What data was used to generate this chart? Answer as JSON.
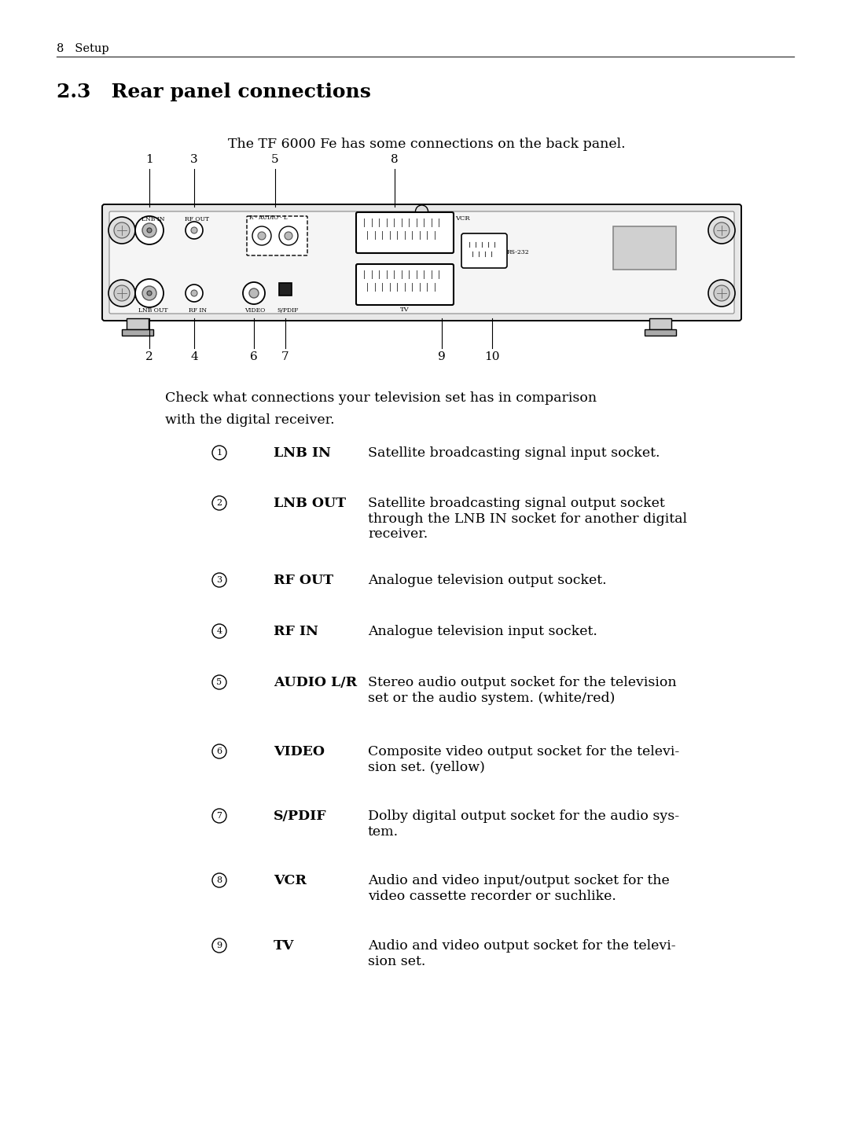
{
  "page_number": "8",
  "page_header": "Setup",
  "section_title": "2.3   Rear panel connections",
  "intro_text": "The TF 6000 Fe has some connections on the back panel.",
  "check_text": "Check what connections your television set has in comparison\nwith the digital receiver.",
  "items": [
    {
      "number": "①",
      "label": "LNB IN",
      "description": "Satellite broadcasting signal input socket."
    },
    {
      "number": "②",
      "label": "LNB OUT",
      "description": "Satellite broadcasting signal output socket\nthrough the LNB IN socket for another digital\nreceiver."
    },
    {
      "number": "③",
      "label": "RF OUT",
      "description": "Analogue television output socket."
    },
    {
      "number": "④",
      "label": "RF IN",
      "description": "Analogue television input socket."
    },
    {
      "number": "⑤",
      "label": "AUDIO L/R",
      "description": "Stereo audio output socket for the television\nset or the audio system. (white/red)"
    },
    {
      "number": "⑥",
      "label": "VIDEO",
      "description": "Composite video output socket for the televi-\nsion set. (yellow)"
    },
    {
      "number": "⑦",
      "label": "S/PDIF",
      "description": "Dolby digital output socket for the audio sys-\ntem."
    },
    {
      "number": "⑧",
      "label": "VCR",
      "description": "Audio and video input/output socket for the\nvideo cassette recorder or suchlike."
    },
    {
      "number": "⑨",
      "label": "TV",
      "description": "Audio and video output socket for the televi-\nsion set."
    }
  ],
  "bg_color": "#ffffff",
  "text_color": "#000000"
}
